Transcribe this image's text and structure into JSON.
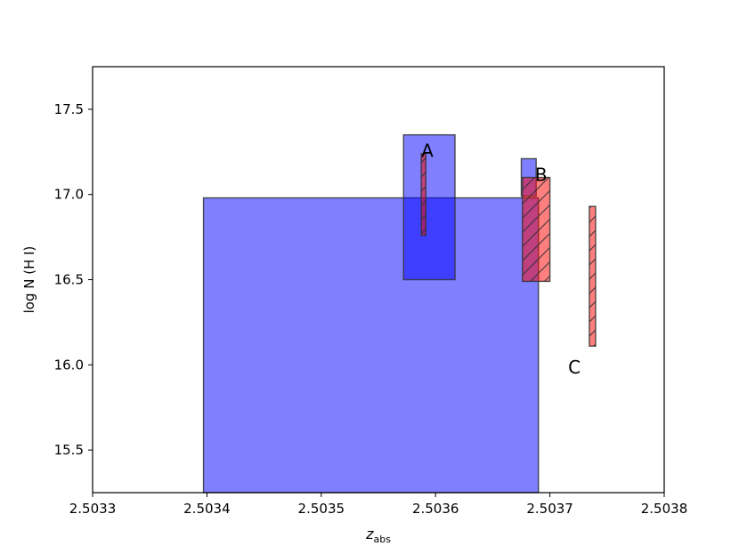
{
  "chart_data": {
    "type": "bar",
    "xlabel": "z",
    "xlabel_sub": "abs",
    "ylabel": "log N (H I)",
    "xlim": [
      2.5033,
      2.5038
    ],
    "ylim": [
      15.25,
      17.75
    ],
    "xticks": [
      2.5033,
      2.5034,
      2.5035,
      2.5036,
      2.5037,
      2.5038
    ],
    "xtick_labels": [
      "2.5033",
      "2.5034",
      "2.5035",
      "2.5036",
      "2.5037",
      "2.5038"
    ],
    "yticks": [
      15.5,
      16.0,
      16.5,
      17.0,
      17.5
    ],
    "ytick_labels": [
      "15.5",
      "16.0",
      "16.5",
      "17.0",
      "17.5"
    ],
    "grid": false,
    "colors": {
      "blue": "#0000ff",
      "red": "#ff0000",
      "edge": "#333333"
    },
    "series": [
      {
        "color": "blue",
        "hatched": false,
        "boxes": [
          {
            "x0": 2.503397,
            "x1": 2.50369,
            "y0": 15.25,
            "y1": 16.98
          },
          {
            "x0": 2.503572,
            "x1": 2.503617,
            "y0": 16.5,
            "y1": 17.35
          },
          {
            "x0": 2.503675,
            "x1": 2.503688,
            "y0": 16.99,
            "y1": 17.21
          }
        ]
      },
      {
        "color": "red",
        "hatched": true,
        "boxes": [
          {
            "x0": 2.5035875,
            "x1": 2.5035915,
            "y0": 16.76,
            "y1": 17.24
          },
          {
            "x0": 2.503676,
            "x1": 2.5037,
            "y0": 16.49,
            "y1": 17.1
          },
          {
            "x0": 2.5037345,
            "x1": 2.50374,
            "y0": 16.11,
            "y1": 16.93
          }
        ]
      }
    ],
    "annotations": [
      {
        "text": "A",
        "x": 2.5035875,
        "y": 17.22
      },
      {
        "text": "B",
        "x": 2.503687,
        "y": 17.08
      },
      {
        "text": "C",
        "x": 2.503716,
        "y": 15.95
      }
    ]
  }
}
